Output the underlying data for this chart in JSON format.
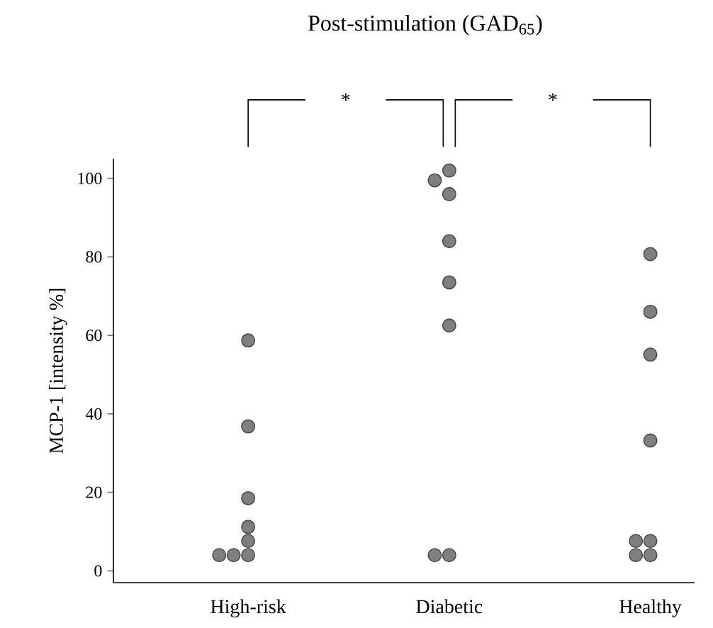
{
  "chart_data": {
    "type": "scatter",
    "title": "Post-stimulation (GAD$_{65}$)",
    "ylabel": "MCP-1 [intensity %]",
    "categories": [
      "High-risk",
      "Diabetic",
      "Healthy"
    ],
    "series": [
      {
        "color": "#7f7f7f",
        "x": [
          "High-risk",
          "High-risk",
          "High-risk",
          "High-risk",
          "High-risk",
          "High-risk",
          "High-risk",
          "High-risk"
        ],
        "values": [
          58.7,
          36.8,
          18.5,
          11.2,
          7.6,
          4,
          4,
          4
        ]
      },
      {
        "color": "#7f7f7f",
        "x": [
          "Diabetic",
          "Diabetic",
          "Diabetic",
          "Diabetic",
          "Diabetic",
          "Diabetic",
          "Diabetic",
          "Diabetic"
        ],
        "values": [
          102,
          99.5,
          96,
          84,
          73.5,
          62.5,
          4,
          4
        ]
      },
      {
        "color": "#7f7f7f",
        "x": [
          "Healthy",
          "Healthy",
          "Healthy",
          "Healthy",
          "Healthy",
          "Healthy",
          "Healthy",
          "Healthy"
        ],
        "values": [
          80.7,
          66,
          55.1,
          33.2,
          7.6,
          7.6,
          4,
          4
        ]
      }
    ],
    "ylim": [
      -3,
      105
    ],
    "yticks": [
      0,
      20,
      40,
      60,
      80,
      100
    ],
    "marker": "circle",
    "grid": false,
    "annotations": [
      "*",
      "*"
    ]
  }
}
